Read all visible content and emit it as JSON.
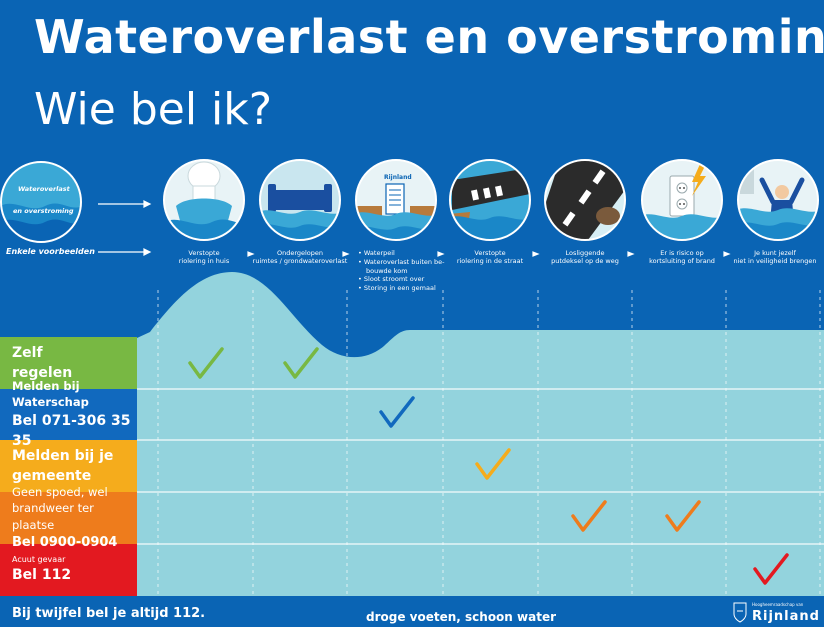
{
  "header": {
    "title": "Wateroverlast en overstroming",
    "subtitle": "Wie bel ik?"
  },
  "intro": {
    "circle_label_1": "Wateroverlast",
    "circle_label_2": "en overstroming",
    "examples_label": "Enkele voorbeelden"
  },
  "scenarios": [
    {
      "icon": "clogged-toilet-icon",
      "caption_1": "Verstopte",
      "caption_2": "riolering in huis"
    },
    {
      "icon": "flooded-room-icon",
      "caption_1": "Ondergelopen",
      "caption_2": "ruimtes / grondwateroverlast"
    },
    {
      "icon": "water-level-icon",
      "logo_text": "Rijnland",
      "items": [
        "Waterpeil",
        "Wateroverlast buiten be-",
        "bouwde kom",
        "Sloot stroomt over",
        "Storing in een gemaal"
      ]
    },
    {
      "icon": "flooded-street-icon",
      "caption_1": "Verstopte",
      "caption_2": "riolering in de straat"
    },
    {
      "icon": "manhole-cover-icon",
      "caption_1": "Losliggende",
      "caption_2": "putdeksel op de weg"
    },
    {
      "icon": "electric-socket-icon",
      "caption_1": "Er is risico op",
      "caption_2": "kortsluiting of brand"
    },
    {
      "icon": "drowning-person-icon",
      "caption_1": "Je kunt jezelf",
      "caption_2": "niet in veiligheid brengen"
    }
  ],
  "rows": [
    {
      "id": "zelf",
      "line1": "Zelf",
      "line2": "regelen",
      "color": "#78b843"
    },
    {
      "id": "waterschap",
      "line1": "Melden bij Waterschap",
      "line2": "Bel 071-306 35 35",
      "color": "#1169be"
    },
    {
      "id": "gemeente",
      "line1": "Melden bij je",
      "line2": "gemeente",
      "color": "#f5ac1c"
    },
    {
      "id": "brandweer",
      "line1": "Geen spoed, wel",
      "line2": "brandweer ter plaatse",
      "line3": "Bel 0900-0904",
      "color": "#ee7c1c"
    },
    {
      "id": "acuut",
      "line1": "Acuut gevaar",
      "line2": "Bel 112",
      "color": "#e31920"
    }
  ],
  "checks": [
    {
      "scenario": 0,
      "row": 0,
      "color": "#78b843"
    },
    {
      "scenario": 1,
      "row": 0,
      "color": "#78b843"
    },
    {
      "scenario": 2,
      "row": 1,
      "color": "#1169be"
    },
    {
      "scenario": 3,
      "row": 2,
      "color": "#f5ac1c"
    },
    {
      "scenario": 4,
      "row": 3,
      "color": "#ee7c1c"
    },
    {
      "scenario": 5,
      "row": 3,
      "color": "#ee7c1c"
    },
    {
      "scenario": 6,
      "row": 4,
      "color": "#e31920"
    }
  ],
  "footer": {
    "left": "Bij twijfel bel je altijd 112.",
    "middle": "droge voeten, schoon water",
    "logo_small": "Hoogheemraadschap van",
    "logo_name": "Rijnland"
  },
  "colors": {
    "background": "#0a64b4",
    "water_light": "#93d3dd",
    "water_mid": "#3aa8d6"
  }
}
